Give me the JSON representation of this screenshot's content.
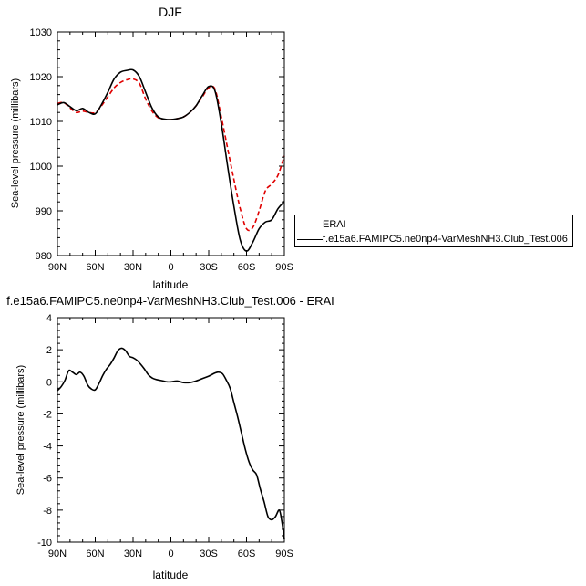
{
  "chart_data": [
    {
      "type": "line",
      "title": "DJF",
      "xlabel": "latitude",
      "ylabel": "Sea-level pressure (millibars)",
      "xlim": [
        90,
        -90
      ],
      "ylim": [
        980,
        1030
      ],
      "xticks": [
        90,
        60,
        30,
        0,
        -30,
        -60,
        -90
      ],
      "xtick_labels": [
        "90N",
        "60N",
        "30N",
        "0",
        "30S",
        "60S",
        "90S"
      ],
      "yticks": [
        980,
        990,
        1000,
        1010,
        1020,
        1030
      ],
      "ytick_labels": [
        "980",
        "990",
        "1000",
        "1010",
        "1020",
        "1030"
      ],
      "legend_position": "right",
      "series": [
        {
          "name": "ERAI",
          "color": "#e00000",
          "dash": "dashed",
          "x": [
            90,
            85,
            80,
            75,
            70,
            65,
            60,
            55,
            50,
            45,
            40,
            35,
            30,
            25,
            20,
            15,
            10,
            5,
            0,
            -5,
            -10,
            -15,
            -20,
            -25,
            -30,
            -35,
            -40,
            -45,
            -50,
            -55,
            -60,
            -65,
            -70,
            -75,
            -80,
            -85,
            -90
          ],
          "y": [
            1014,
            1014.2,
            1013,
            1012,
            1012.3,
            1012,
            1012,
            1013.5,
            1015.5,
            1017.5,
            1018.7,
            1019.3,
            1019.5,
            1018.5,
            1015,
            1012.3,
            1010.8,
            1010.4,
            1010.4,
            1010.6,
            1011,
            1012,
            1013.5,
            1015.5,
            1017.5,
            1017.2,
            1011,
            1004,
            997,
            990.5,
            986,
            986.3,
            990,
            994.5,
            996,
            998,
            1002.3
          ]
        },
        {
          "name": "f.e15a6.FAMIPC5.ne0np4-VarMeshNH3.Club_Test.006",
          "color": "#000000",
          "dash": "solid",
          "x": [
            90,
            85,
            80,
            75,
            70,
            65,
            60,
            55,
            50,
            45,
            40,
            35,
            30,
            25,
            20,
            15,
            10,
            5,
            0,
            -5,
            -10,
            -15,
            -20,
            -25,
            -30,
            -35,
            -40,
            -45,
            -50,
            -55,
            -60,
            -65,
            -70,
            -75,
            -80,
            -85,
            -90
          ],
          "y": [
            1013.7,
            1014.2,
            1013.3,
            1012.4,
            1012.9,
            1012,
            1011.7,
            1013.8,
            1016.5,
            1019.5,
            1021,
            1021.4,
            1021.5,
            1020,
            1016.5,
            1013,
            1011,
            1010.5,
            1010.4,
            1010.6,
            1011,
            1012,
            1013.5,
            1015.8,
            1017.8,
            1016.8,
            1009.5,
            1000,
            991,
            983.5,
            981,
            983,
            986,
            987.5,
            988,
            990.5,
            992.1
          ]
        }
      ]
    },
    {
      "type": "line",
      "title": "f.e15a6.FAMIPC5.ne0np4-VarMeshNH3.Club_Test.006 - ERAI",
      "xlabel": "latitude",
      "ylabel": "Sea-level pressure (millibars)",
      "xlim": [
        90,
        -90
      ],
      "ylim": [
        -10,
        4
      ],
      "xticks": [
        90,
        60,
        30,
        0,
        -30,
        -60,
        -90
      ],
      "xtick_labels": [
        "90N",
        "60N",
        "30N",
        "0",
        "30S",
        "60S",
        "90S"
      ],
      "yticks": [
        -10,
        -8,
        -6,
        -4,
        -2,
        0,
        2,
        4
      ],
      "ytick_labels": [
        "-10",
        "-8",
        "-6",
        "-4",
        "-2",
        "0",
        "2",
        "4"
      ],
      "series": [
        {
          "color": "#000000",
          "dash": "solid",
          "x": [
            90,
            87,
            84,
            81,
            78,
            75,
            72,
            69,
            66,
            63,
            60,
            57,
            54,
            51,
            48,
            45,
            42,
            39,
            36,
            33,
            30,
            27,
            24,
            21,
            18,
            15,
            12,
            9,
            6,
            3,
            0,
            -5,
            -10,
            -15,
            -20,
            -25,
            -30,
            -35,
            -38,
            -41,
            -44,
            -47,
            -50,
            -53,
            -56,
            -59,
            -62,
            -65,
            -68,
            -71,
            -74,
            -77,
            -80,
            -83,
            -86,
            -88,
            -90
          ],
          "y": [
            -0.55,
            -0.3,
            0.1,
            0.7,
            0.6,
            0.45,
            0.6,
            0.35,
            -0.2,
            -0.45,
            -0.5,
            -0.1,
            0.4,
            0.8,
            1.1,
            1.5,
            1.95,
            2.1,
            1.95,
            1.6,
            1.5,
            1.35,
            1.1,
            0.8,
            0.45,
            0.25,
            0.15,
            0.1,
            0.05,
            0.0,
            0.0,
            0.05,
            -0.05,
            -0.05,
            0.05,
            0.2,
            0.35,
            0.55,
            0.6,
            0.5,
            0.1,
            -0.4,
            -1.3,
            -2.2,
            -3.2,
            -4.2,
            -5.0,
            -5.5,
            -5.8,
            -6.7,
            -7.5,
            -8.4,
            -8.6,
            -8.4,
            -8.0,
            -8.7,
            -9.8
          ]
        }
      ]
    }
  ]
}
